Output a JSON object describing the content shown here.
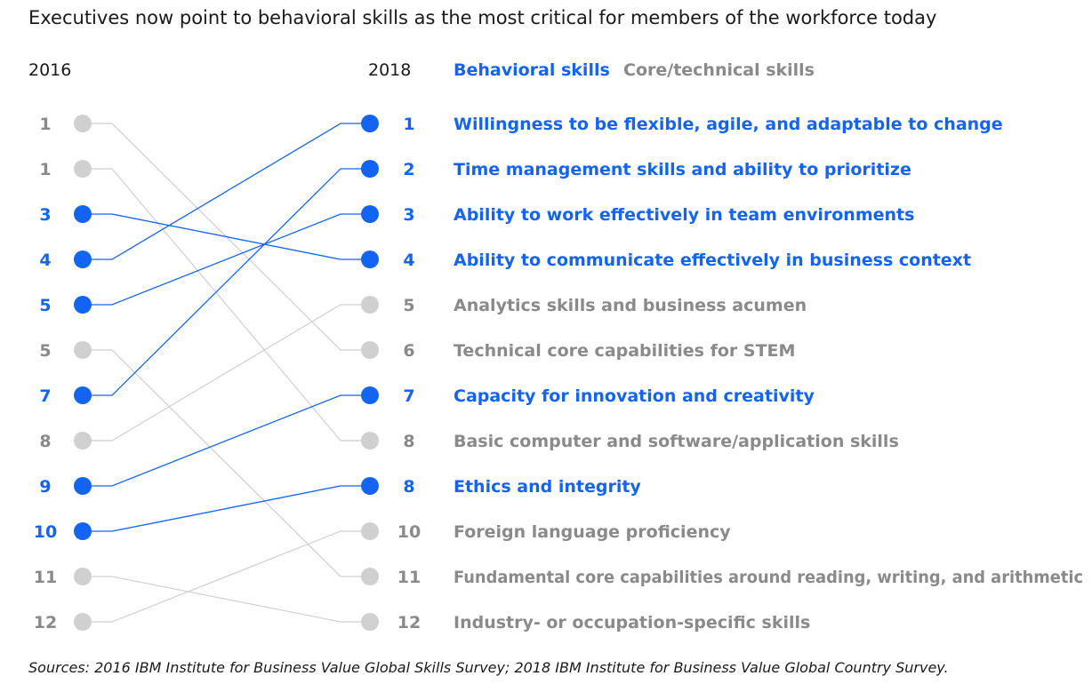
{
  "title": "Executives now point to behavioral skills as the most critical for members of the workforce today",
  "colors": {
    "behavioral": "#1464f4",
    "core": "#8a8a8a",
    "core_dot": "#d0d0d0",
    "core_line": "#cfcfcf",
    "text": "#1a1a1a"
  },
  "legend": {
    "behavioral": "Behavioral skills",
    "core": "Core/technical skills"
  },
  "source": "Sources: 2016 IBM Institute for Business Value Global Skills Survey; 2018 IBM Institute for Business Value Global Country Survey.",
  "chart_data": {
    "type": "slope",
    "x_labels": [
      "2016",
      "2018"
    ],
    "skills": [
      {
        "name": "Willingness to be flexible, agile, and adaptable to change",
        "category": "behavioral",
        "rank_2016": "4",
        "rank_2018": "1",
        "row_2016": 4,
        "row_2018": 1
      },
      {
        "name": "Time management skills and ability to prioritize",
        "category": "behavioral",
        "rank_2016": "7",
        "rank_2018": "2",
        "row_2016": 7,
        "row_2018": 2
      },
      {
        "name": "Ability to work effectively in team environments",
        "category": "behavioral",
        "rank_2016": "5",
        "rank_2018": "3",
        "row_2016": 5,
        "row_2018": 3
      },
      {
        "name": "Ability to communicate effectively in business context",
        "category": "behavioral",
        "rank_2016": "3",
        "rank_2018": "4",
        "row_2016": 3,
        "row_2018": 4
      },
      {
        "name": "Analytics skills and business acumen",
        "category": "core",
        "rank_2016": "8",
        "rank_2018": "5",
        "row_2016": 8,
        "row_2018": 5
      },
      {
        "name": "Technical core capabilities for STEM",
        "category": "core",
        "rank_2016": "1",
        "rank_2018": "6",
        "row_2016": 1,
        "row_2018": 6
      },
      {
        "name": "Capacity for innovation and creativity",
        "category": "behavioral",
        "rank_2016": "9",
        "rank_2018": "7",
        "row_2016": 9,
        "row_2018": 7
      },
      {
        "name": "Basic computer and software/application skills",
        "category": "core",
        "rank_2016": "1",
        "rank_2018": "8",
        "row_2016": 2,
        "row_2018": 8
      },
      {
        "name": "Ethics and integrity",
        "category": "behavioral",
        "rank_2016": "10",
        "rank_2018": "8",
        "row_2016": 10,
        "row_2018": 9
      },
      {
        "name": "Foreign language proficiency",
        "category": "core",
        "rank_2016": "12",
        "rank_2018": "10",
        "row_2016": 12,
        "row_2018": 10
      },
      {
        "name": "Fundamental core capabilities around reading, writing, and arithmetic",
        "category": "core",
        "rank_2016": "5",
        "rank_2018": "11",
        "row_2016": 6,
        "row_2018": 11
      },
      {
        "name": "Industry- or occupation-specific skills",
        "category": "core",
        "rank_2016": "11",
        "rank_2018": "12",
        "row_2016": 11,
        "row_2018": 12
      }
    ]
  }
}
